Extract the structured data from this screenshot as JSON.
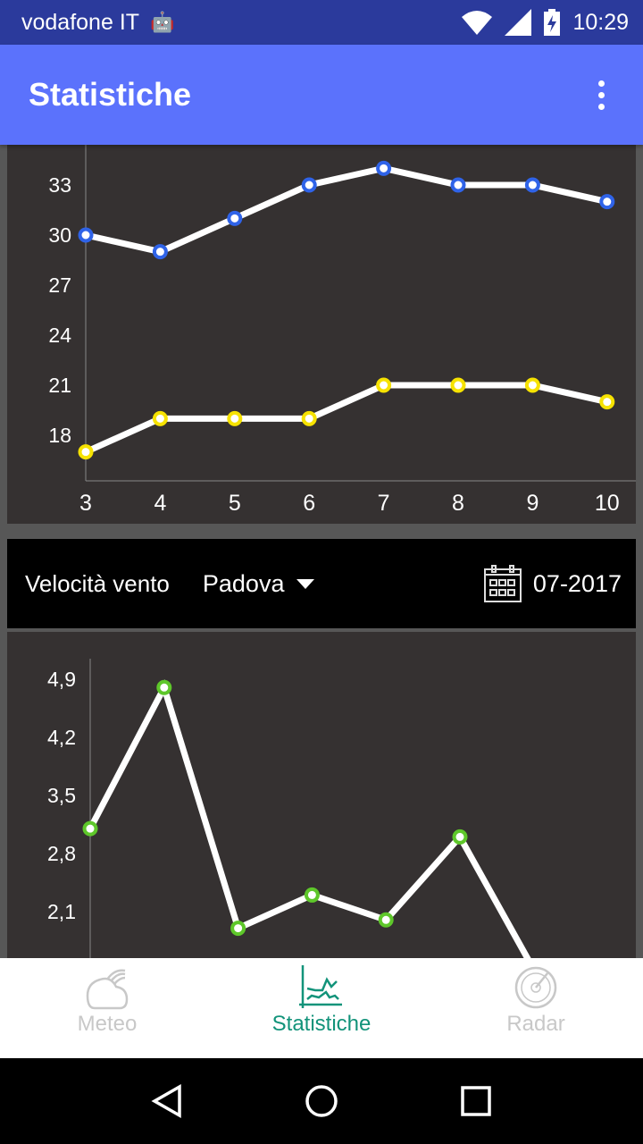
{
  "status_bar": {
    "carrier": "vodafone IT",
    "time": "10:29"
  },
  "app_bar": {
    "title": "Statistiche",
    "menu_icon": "more-vert-icon"
  },
  "chart_top": {
    "chart_data": {
      "type": "line",
      "x": [
        3,
        4,
        5,
        6,
        7,
        8,
        9,
        10
      ],
      "x_ticks": [
        "3",
        "4",
        "5",
        "6",
        "7",
        "8",
        "9",
        "10"
      ],
      "y_ticks": [
        "18",
        "21",
        "24",
        "27",
        "30",
        "33"
      ],
      "ylim": [
        16,
        35
      ],
      "series": [
        {
          "color": "#2f63e8",
          "values": [
            30,
            29,
            31,
            33,
            34,
            33,
            33,
            32
          ]
        },
        {
          "color": "#f6e200",
          "values": [
            17,
            19,
            19,
            19,
            21,
            21,
            21,
            20
          ]
        }
      ]
    }
  },
  "controls": {
    "metric_label": "Velocità vento",
    "city": "Padova",
    "date": "07-2017"
  },
  "chart_bottom": {
    "chart_data": {
      "type": "line",
      "y_ticks": [
        "4,9",
        "4,2",
        "3,5",
        "2,8",
        "2,1"
      ],
      "series": [
        {
          "color": "#5ec72a",
          "values": [
            3.1,
            4.8,
            1.9,
            2.3,
            2.0,
            3.0,
            1.4
          ]
        }
      ]
    }
  },
  "bottom_nav": {
    "tabs": [
      {
        "label": "Meteo",
        "icon": "weather-icon"
      },
      {
        "label": "Statistiche",
        "icon": "chart-icon",
        "active": true
      },
      {
        "label": "Radar",
        "icon": "radar-icon"
      }
    ]
  }
}
